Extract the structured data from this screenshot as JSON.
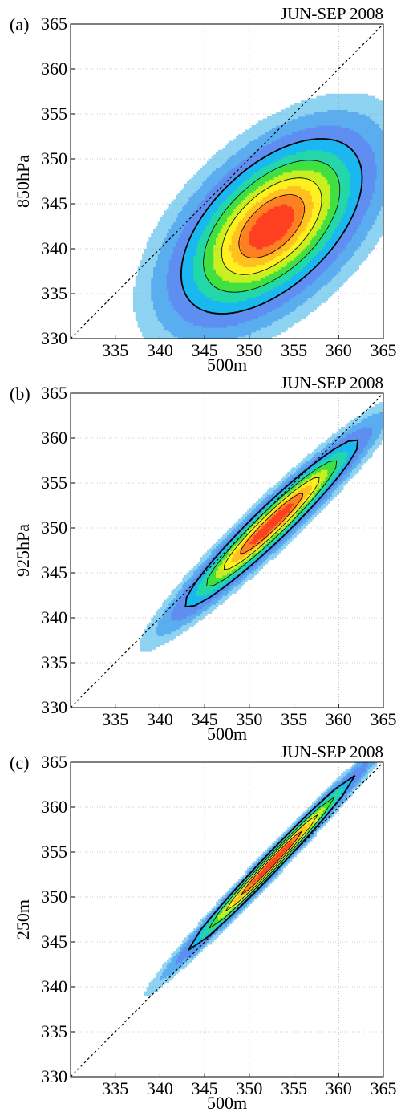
{
  "figure": {
    "panels": [
      {
        "letter": "(a)",
        "title": "JUN-SEP 2008",
        "xlabel": "500m",
        "ylabel": "850hPa"
      },
      {
        "letter": "(b)",
        "title": "JUN-SEP 2008",
        "xlabel": "500m",
        "ylabel": "925hPa"
      },
      {
        "letter": "(c)",
        "title": "JUN-SEP 2008",
        "xlabel": "500m",
        "ylabel": "250m"
      }
    ]
  },
  "chart_data": [
    {
      "type": "heatmap",
      "panel": "(a)",
      "title": "JUN-SEP 2008",
      "xlabel": "500m",
      "ylabel": "850hPa",
      "xlim": [
        330,
        365
      ],
      "ylim": [
        330,
        365
      ],
      "xticks": [
        "335",
        "340",
        "345",
        "350",
        "355",
        "360",
        "365"
      ],
      "yticks": [
        "330",
        "335",
        "340",
        "345",
        "350",
        "355",
        "360",
        "365"
      ],
      "grid": true,
      "diagonal": "dashed one-to-one line",
      "density_center": [
        352.5,
        342.5
      ],
      "spread": {
        "sx": 5.2,
        "sy": 5.0,
        "rho": 0.55
      },
      "colors": [
        "#8ed3f2",
        "#5aaef0",
        "#5e8ef2",
        "#1ab8f0",
        "#22d8a8",
        "#40e040",
        "#c8f020",
        "#fff020",
        "#ffc020",
        "#ff8020",
        "#ff4020"
      ]
    },
    {
      "type": "heatmap",
      "panel": "(b)",
      "title": "JUN-SEP 2008",
      "xlabel": "500m",
      "ylabel": "925hPa",
      "xlim": [
        330,
        365
      ],
      "ylim": [
        330,
        365
      ],
      "xticks": [
        "335",
        "340",
        "345",
        "350",
        "355",
        "360",
        "365"
      ],
      "yticks": [
        "330",
        "335",
        "340",
        "345",
        "350",
        "355",
        "360",
        "365"
      ],
      "grid": true,
      "diagonal": "dashed one-to-one line",
      "density_center": [
        352.5,
        350.5
      ],
      "spread": {
        "sx": 5.0,
        "sy": 4.8,
        "rho": 0.96
      },
      "colors": [
        "#8ed3f2",
        "#5aaef0",
        "#5e8ef2",
        "#1ab8f0",
        "#22d8a8",
        "#40e040",
        "#c8f020",
        "#fff020",
        "#ffc020",
        "#ff8020",
        "#ff4020"
      ]
    },
    {
      "type": "heatmap",
      "panel": "(c)",
      "title": "JUN-SEP 2008",
      "xlabel": "500m",
      "ylabel": "250m",
      "xlim": [
        330,
        365
      ],
      "ylim": [
        330,
        365
      ],
      "xticks": [
        "335",
        "340",
        "345",
        "350",
        "355",
        "360",
        "365"
      ],
      "yticks": [
        "330",
        "335",
        "340",
        "345",
        "350",
        "355",
        "360",
        "365"
      ],
      "grid": true,
      "diagonal": "dashed one-to-one line",
      "density_center": [
        352.5,
        353.8
      ],
      "spread": {
        "sx": 4.8,
        "sy": 5.0,
        "rho": 0.99
      },
      "colors": [
        "#8ed3f2",
        "#5aaef0",
        "#5e8ef2",
        "#1ab8f0",
        "#22d8a8",
        "#40e040",
        "#c8f020",
        "#fff020",
        "#ffc020",
        "#ff8020",
        "#ff4020"
      ]
    }
  ]
}
